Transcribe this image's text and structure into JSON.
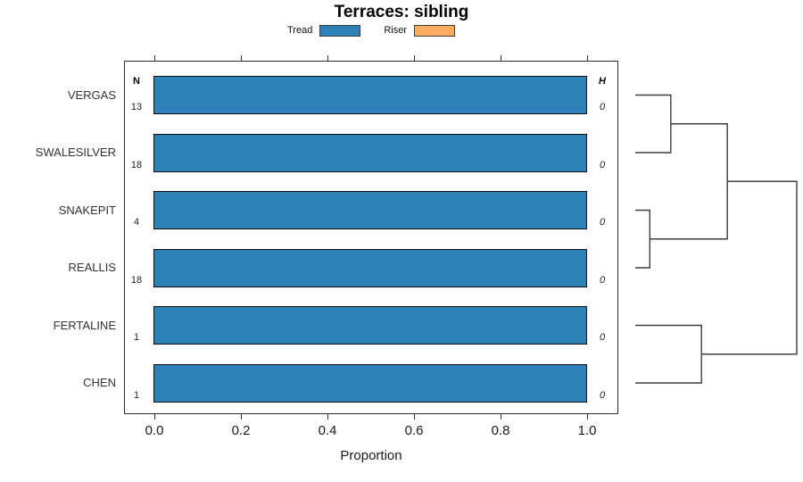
{
  "title": "Terraces: sibling",
  "legend": {
    "items": [
      {
        "label": "Tread",
        "color": "#2E80B9"
      },
      {
        "label": "Riser",
        "color": "#FBAC60"
      }
    ]
  },
  "table": {
    "n_header": "N",
    "h_header": "H"
  },
  "axis": {
    "xlabel": "Proportion",
    "tick_labels": [
      "0.0",
      "0.2",
      "0.4",
      "0.6",
      "0.8",
      "1.0"
    ]
  },
  "rows": [
    {
      "label": "VERGAS",
      "n": "13",
      "h": "0",
      "tread": 1.0,
      "riser": 0.0
    },
    {
      "label": "SWALESILVER",
      "n": "18",
      "h": "0",
      "tread": 1.0,
      "riser": 0.0
    },
    {
      "label": "SNAKEPIT",
      "n": "4",
      "h": "0",
      "tread": 1.0,
      "riser": 0.0
    },
    {
      "label": "REALLIS",
      "n": "18",
      "h": "0",
      "tread": 1.0,
      "riser": 0.0
    },
    {
      "label": "FERTALINE",
      "n": "1",
      "h": "0",
      "tread": 1.0,
      "riser": 0.0
    },
    {
      "label": "CHEN",
      "n": "1",
      "h": "0",
      "tread": 1.0,
      "riser": 0.0
    }
  ],
  "dendrogram": {
    "leaves": [
      "VERGAS",
      "SWALESILVER",
      "SNAKEPIT",
      "REALLIS",
      "FERTALINE",
      "CHEN"
    ],
    "merges": [
      {
        "id": "m1",
        "children": [
          "VERGAS",
          "SWALESILVER"
        ],
        "height": 0.22
      },
      {
        "id": "m2",
        "children": [
          "SNAKEPIT",
          "REALLIS"
        ],
        "height": 0.09
      },
      {
        "id": "m3",
        "children": [
          "m1",
          "m2"
        ],
        "height": 0.57
      },
      {
        "id": "m4",
        "children": [
          "FERTALINE",
          "CHEN"
        ],
        "height": 0.41
      },
      {
        "id": "m5",
        "children": [
          "m3",
          "m4"
        ],
        "height": 1.0
      }
    ]
  },
  "chart_data": {
    "type": "bar",
    "orientation": "horizontal",
    "title": "Terraces: sibling",
    "xlabel": "Proportion",
    "xlim": [
      0,
      1.05
    ],
    "xticks": [
      0.0,
      0.2,
      0.4,
      0.6,
      0.8,
      1.0
    ],
    "categories": [
      "VERGAS",
      "SWALESILVER",
      "SNAKEPIT",
      "REALLIS",
      "FERTALINE",
      "CHEN"
    ],
    "series": [
      {
        "name": "Tread",
        "color": "#2E80B9",
        "values": [
          1.0,
          1.0,
          1.0,
          1.0,
          1.0,
          1.0
        ]
      },
      {
        "name": "Riser",
        "color": "#FBAC60",
        "values": [
          0.0,
          0.0,
          0.0,
          0.0,
          0.0,
          0.0
        ]
      }
    ],
    "annotations": {
      "N": [
        13,
        18,
        4,
        18,
        1,
        1
      ],
      "H": [
        0,
        0,
        0,
        0,
        0,
        0
      ]
    },
    "legend_position": "top",
    "grid": false,
    "right_panel": "dendrogram",
    "dendrogram_structure": "(((VERGAS,SWALESILVER),(SNAKEPIT,REALLIS)),(FERTALINE,CHEN))"
  }
}
